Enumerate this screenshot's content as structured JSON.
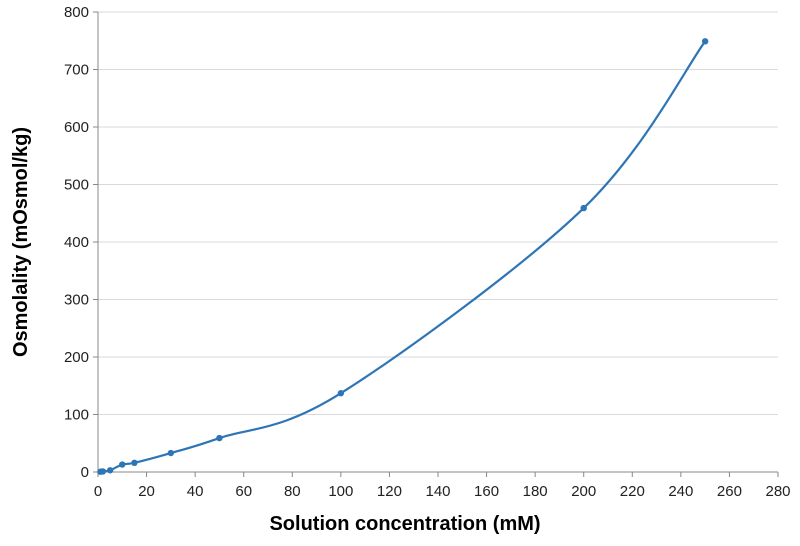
{
  "chart_data": {
    "type": "line",
    "title": "",
    "xlabel": "Solution concentration (mM)",
    "ylabel": "Osmolality (mOsmol/kg)",
    "xlim": [
      0,
      280
    ],
    "ylim": [
      0,
      800
    ],
    "xticks": [
      0,
      20,
      40,
      60,
      80,
      100,
      120,
      140,
      160,
      180,
      200,
      220,
      240,
      260,
      280
    ],
    "yticks": [
      0,
      100,
      200,
      300,
      400,
      500,
      600,
      700,
      800
    ],
    "grid": "horizontal",
    "smooth": true,
    "color": "#2e75b6",
    "x": [
      1,
      2,
      5,
      10,
      15,
      30,
      50,
      100,
      200,
      250
    ],
    "y": [
      0.5,
      1,
      3,
      13,
      16,
      33,
      59,
      137,
      459,
      749
    ]
  }
}
